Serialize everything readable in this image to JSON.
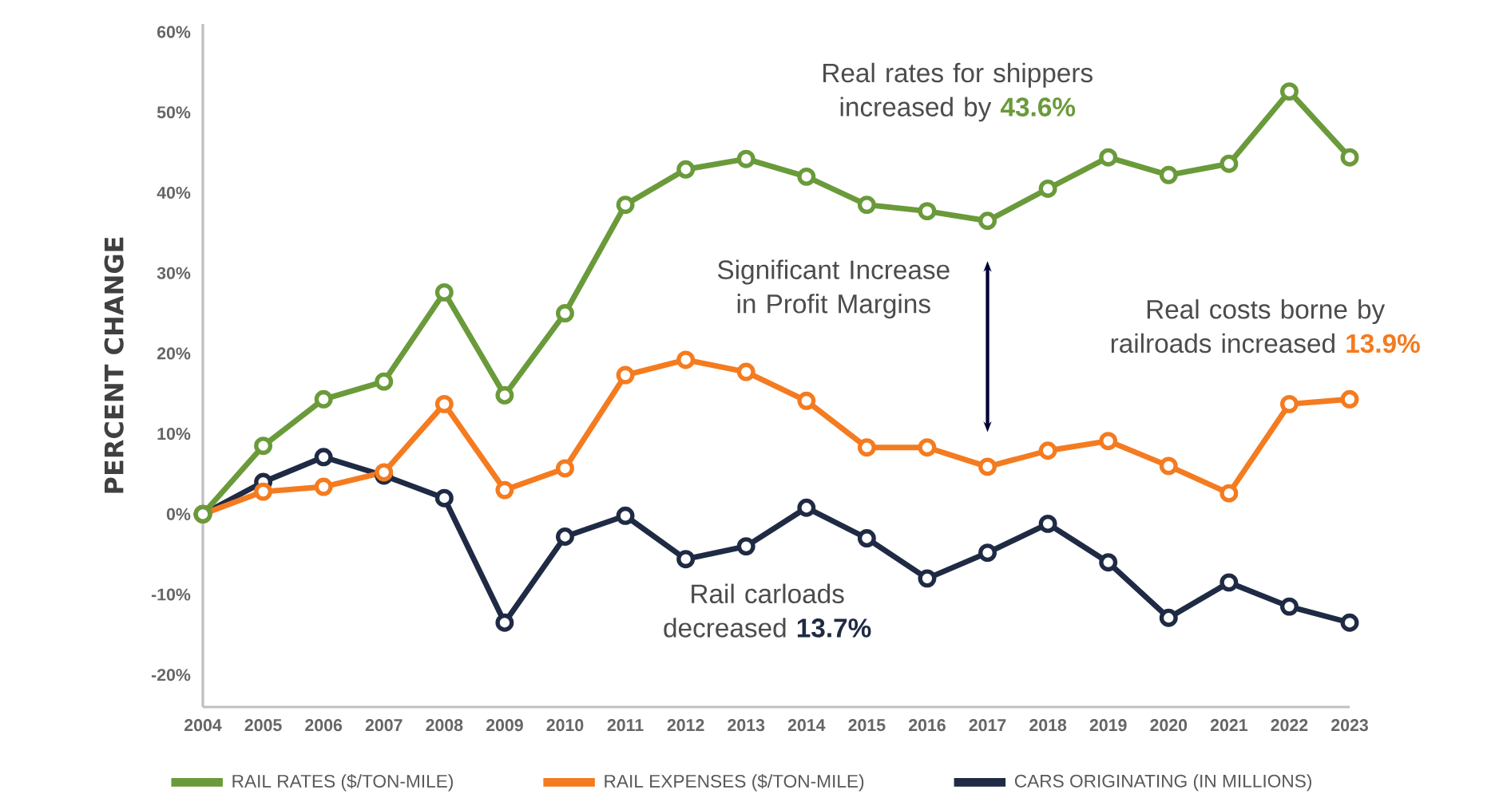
{
  "chart_data": {
    "type": "line",
    "ylabel": "PERCENT CHANGE",
    "categories": [
      "2004",
      "2005",
      "2006",
      "2007",
      "2008",
      "2009",
      "2010",
      "2011",
      "2012",
      "2013",
      "2014",
      "2015",
      "2016",
      "2017",
      "2018",
      "2019",
      "2020",
      "2021",
      "2022",
      "2023"
    ],
    "series": [
      {
        "name": "RAIL RATES ($/TON-MILE)",
        "color": "#6a9a3a",
        "values": [
          0,
          8.5,
          14.3,
          16.5,
          27.6,
          14.8,
          25,
          38.5,
          42.9,
          44.2,
          42,
          38.5,
          37.7,
          36.5,
          40.5,
          44.4,
          42.2,
          43.6,
          52.6,
          44.4
        ]
      },
      {
        "name": "RAIL EXPENSES ($/TON-MILE)",
        "color": "#f47b20",
        "values": [
          0,
          2.8,
          3.4,
          5.2,
          13.7,
          3,
          5.7,
          17.3,
          19.2,
          17.7,
          14.1,
          8.3,
          8.3,
          5.9,
          7.9,
          9.1,
          6,
          2.6,
          13.7,
          14.3
        ]
      },
      {
        "name": "CARS ORIGINATING (IN MILLIONS)",
        "color": "#1f2a44",
        "values": [
          0,
          4,
          7.1,
          4.8,
          2,
          -13.5,
          -2.8,
          -0.2,
          -5.6,
          -4,
          0.8,
          -3,
          -8,
          -4.8,
          -1.2,
          -6,
          -12.9,
          -8.5,
          -11.5,
          -13.5
        ]
      }
    ],
    "ylim": [
      -24,
      61
    ],
    "yticks": [
      {
        "value": -20,
        "label": "-20%"
      },
      {
        "value": -10,
        "label": "-10%"
      },
      {
        "value": 0,
        "label": "0%"
      },
      {
        "value": 10,
        "label": "10%"
      },
      {
        "value": 20,
        "label": "20%"
      },
      {
        "value": 30,
        "label": "30%"
      },
      {
        "value": 40,
        "label": "40%"
      },
      {
        "value": 50,
        "label": "50%"
      },
      {
        "value": 60,
        "label": "60%"
      }
    ],
    "marker": "circle",
    "legend": "bottom",
    "annotations": [
      "Real rates for shippers increased by **43.6%**",
      "Significant Increase in Profit Margins",
      "Real costs borne by railroads increased **13.9%**",
      "Rail carloads decreased **13.7%**"
    ]
  }
}
